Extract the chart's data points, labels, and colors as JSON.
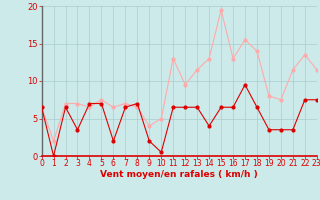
{
  "hours": [
    0,
    1,
    2,
    3,
    4,
    5,
    6,
    7,
    8,
    9,
    10,
    11,
    12,
    13,
    14,
    15,
    16,
    17,
    18,
    19,
    20,
    21,
    22,
    23
  ],
  "wind_avg": [
    6.5,
    0,
    6.5,
    3.5,
    7,
    7,
    2,
    6.5,
    7,
    2,
    0.5,
    6.5,
    6.5,
    6.5,
    4,
    6.5,
    6.5,
    9.5,
    6.5,
    3.5,
    3.5,
    3.5,
    7.5,
    7.5
  ],
  "wind_gust": [
    6.5,
    2,
    7,
    7,
    6.5,
    7.5,
    6.5,
    7,
    6.5,
    4,
    5,
    13,
    9.5,
    11.5,
    13,
    19.5,
    13,
    15.5,
    14,
    8,
    7.5,
    11.5,
    13.5,
    11.5
  ],
  "bg_color": "#cceaea",
  "grid_color": "#aacccc",
  "avg_color": "#dd0000",
  "gust_color": "#ffaaaa",
  "xlabel": "Vent moyen/en rafales ( km/h )",
  "xlabel_color": "#dd0000",
  "tick_color": "#dd0000",
  "ylim": [
    0,
    20
  ],
  "yticks": [
    0,
    5,
    10,
    15,
    20
  ],
  "xticks": [
    0,
    1,
    2,
    3,
    4,
    5,
    6,
    7,
    8,
    9,
    10,
    11,
    12,
    13,
    14,
    15,
    16,
    17,
    18,
    19,
    20,
    21,
    22,
    23
  ]
}
